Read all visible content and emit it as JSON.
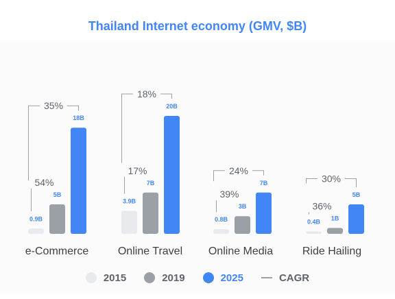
{
  "chart_data": {
    "type": "bar",
    "title": "Thailand Internet economy (GMV, $B)",
    "categories": [
      "e-Commerce",
      "Online Travel",
      "Online Media",
      "Ride Hailing"
    ],
    "series": [
      {
        "name": "2015",
        "values": [
          0.9,
          3.9,
          0.8,
          0.4
        ],
        "labels": [
          "0.9B",
          "3.9B",
          "0.8B",
          "0.4B"
        ],
        "color": "#e8eaed"
      },
      {
        "name": "2019",
        "values": [
          5,
          7,
          3,
          1
        ],
        "labels": [
          "5B",
          "7B",
          "3B",
          "1B"
        ],
        "color": "#9aa0a6"
      },
      {
        "name": "2025",
        "values": [
          18,
          20,
          7,
          5
        ],
        "labels": [
          "18B",
          "20B",
          "7B",
          "5B"
        ],
        "color": "#4285f4"
      }
    ],
    "cagr": {
      "name": "CAGR",
      "short": [
        "54%",
        "17%",
        "39%",
        "36%"
      ],
      "long": [
        "35%",
        "18%",
        "24%",
        "30%"
      ]
    },
    "colors": {
      "title": "#4285f4",
      "label": "#4285f4",
      "bracket": "#9aa0a6",
      "category": "#3c4043"
    },
    "legend_position": "bottom"
  }
}
